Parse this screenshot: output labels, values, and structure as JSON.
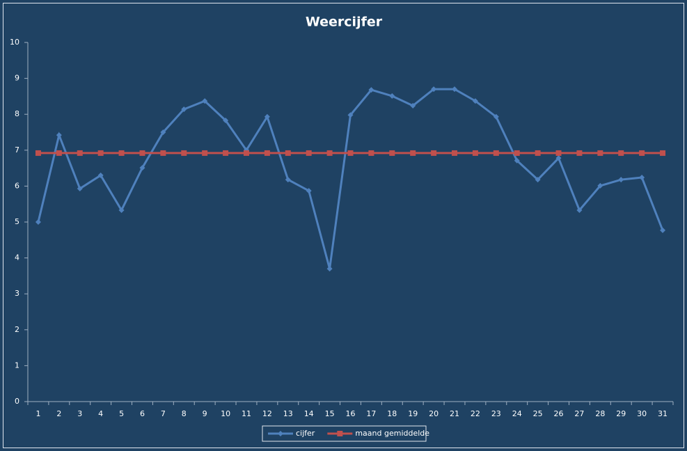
{
  "chart_data": {
    "type": "line",
    "title": "Weercijfer",
    "categories": [
      "1",
      "2",
      "3",
      "4",
      "5",
      "6",
      "7",
      "8",
      "9",
      "10",
      "11",
      "12",
      "13",
      "14",
      "15",
      "16",
      "17",
      "18",
      "19",
      "20",
      "21",
      "22",
      "23",
      "24",
      "25",
      "26",
      "27",
      "28",
      "29",
      "30",
      "31"
    ],
    "series": [
      {
        "name": "cijfer",
        "color": "#4f81bd",
        "marker": "diamond",
        "values": [
          5.0,
          7.42,
          5.93,
          6.3,
          5.33,
          6.51,
          7.5,
          8.14,
          8.37,
          7.83,
          7.0,
          7.93,
          6.18,
          5.87,
          3.7,
          7.98,
          8.68,
          8.51,
          8.24,
          8.7,
          8.7,
          8.37,
          7.93,
          6.71,
          6.18,
          6.78,
          5.33,
          6.01,
          6.18,
          6.24,
          4.77
        ]
      },
      {
        "name": "maand gemiddelde",
        "color": "#c0504d",
        "marker": "square",
        "values": [
          6.92,
          6.92,
          6.92,
          6.92,
          6.92,
          6.92,
          6.92,
          6.92,
          6.92,
          6.92,
          6.92,
          6.92,
          6.92,
          6.92,
          6.92,
          6.92,
          6.92,
          6.92,
          6.92,
          6.92,
          6.92,
          6.92,
          6.92,
          6.92,
          6.92,
          6.92,
          6.92,
          6.92,
          6.92,
          6.92,
          6.92
        ]
      }
    ],
    "ylim": [
      0,
      10
    ],
    "yticks": [
      0,
      1,
      2,
      3,
      4,
      5,
      6,
      7,
      8,
      9,
      10
    ],
    "grid": false,
    "legend": "bottom"
  }
}
